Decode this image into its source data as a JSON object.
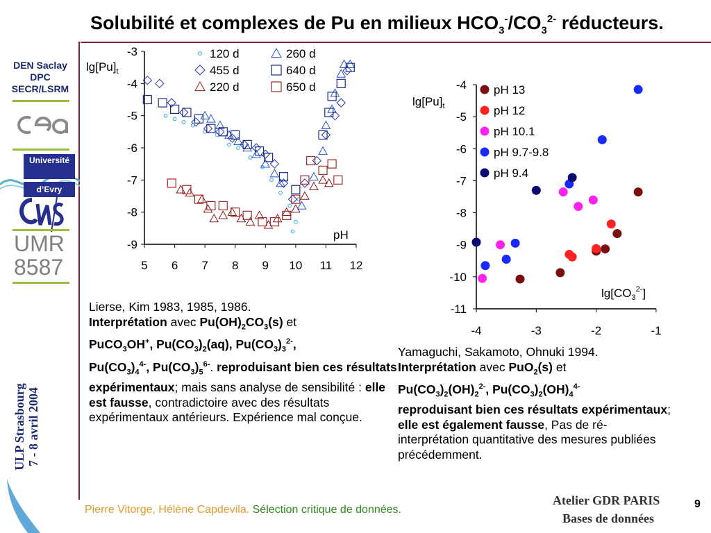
{
  "title": {
    "prefix": "Solubilité et complexes de Pu en milieux HCO",
    "sub1": "3",
    "sup1": "-",
    "mid": "/CO",
    "sub2": "3",
    "sup2": "2-",
    "suffix": " réducteurs."
  },
  "sidebar": {
    "org_line1": "DEN Saclay",
    "org_line2": "DPC",
    "org_line3": "SECR/LSRM",
    "univ_line1": "Université",
    "univ_line2": "d’Evry",
    "umr_line1": "UMR",
    "umr_line2": "8587",
    "venue_line1": "ULP Strasbourg",
    "venue_line2": "7 - 8 avril 2004"
  },
  "chart_left": {
    "ylabel": "lg[Pu]",
    "ylabel_sub": "t",
    "xlabel": "pH",
    "legend": [
      "120 d",
      "260 d",
      "455 d",
      "640 d",
      "220 d",
      "650 d"
    ]
  },
  "chart_right": {
    "ylabel": "lg[Pu]",
    "ylabel_sub": "t",
    "xlabel": "lg[CO",
    "xlabel_sub": "3",
    "xlabel_sup": "2-",
    "xlabel_end": "]"
  },
  "chart_data": [
    {
      "type": "scatter",
      "xlabel": "pH",
      "ylabel": "lg[Pu]t",
      "xlim": [
        5,
        12
      ],
      "ylim": [
        -9,
        -3
      ],
      "x_ticks": [
        "5",
        "6",
        "7",
        "8",
        "9",
        "10",
        "11",
        "12"
      ],
      "y_ticks": [
        "-3",
        "-4",
        "-5",
        "-6",
        "-7",
        "-8",
        "-9"
      ],
      "series": [
        {
          "name": "120 d",
          "marker": "circle",
          "color": "#33aadd",
          "points": [
            [
              5.7,
              -5.0
            ],
            [
              6.0,
              -5.1
            ],
            [
              6.3,
              -5.2
            ],
            [
              6.6,
              -5.3
            ],
            [
              7.0,
              -5.5
            ],
            [
              7.4,
              -5.6
            ],
            [
              7.8,
              -5.9
            ],
            [
              8.1,
              -6.0
            ],
            [
              8.5,
              -6.3
            ],
            [
              8.9,
              -6.6
            ],
            [
              9.2,
              -7.0
            ],
            [
              9.5,
              -7.4
            ],
            [
              9.8,
              -7.8
            ],
            [
              10.0,
              -8.3
            ],
            [
              9.9,
              -8.6
            ],
            [
              10.1,
              -7.6
            ]
          ]
        },
        {
          "name": "260 d",
          "marker": "triangle",
          "color": "#2255cc",
          "points": [
            [
              7.0,
              -5.0
            ],
            [
              7.2,
              -5.1
            ],
            [
              7.5,
              -5.3
            ],
            [
              7.8,
              -5.6
            ],
            [
              8.1,
              -5.8
            ],
            [
              8.4,
              -6.0
            ],
            [
              8.7,
              -6.2
            ],
            [
              9.0,
              -6.5
            ],
            [
              9.3,
              -6.8
            ],
            [
              9.5,
              -7.1
            ],
            [
              10.2,
              -7.8
            ],
            [
              10.6,
              -6.9
            ],
            [
              10.9,
              -6.1
            ],
            [
              11.0,
              -5.3
            ],
            [
              11.2,
              -4.8
            ],
            [
              11.3,
              -4.3
            ],
            [
              11.5,
              -3.7
            ],
            [
              11.6,
              -3.4
            ],
            [
              11.8,
              -3.4
            ]
          ]
        },
        {
          "name": "455 d",
          "marker": "diamond",
          "color": "#2233aa",
          "points": [
            [
              5.1,
              -3.9
            ],
            [
              5.5,
              -4.0
            ],
            [
              5.9,
              -4.6
            ],
            [
              6.3,
              -4.9
            ],
            [
              6.7,
              -5.2
            ],
            [
              7.1,
              -5.4
            ],
            [
              7.5,
              -5.5
            ],
            [
              7.9,
              -5.7
            ],
            [
              8.3,
              -5.9
            ],
            [
              8.7,
              -6.0
            ],
            [
              9.0,
              -6.2
            ],
            [
              9.3,
              -6.5
            ],
            [
              9.6,
              -7.1
            ],
            [
              9.9,
              -7.6
            ],
            [
              10.3,
              -7.1
            ],
            [
              10.7,
              -6.4
            ],
            [
              11.0,
              -5.6
            ],
            [
              11.3,
              -5.0
            ],
            [
              11.5,
              -4.6
            ],
            [
              11.7,
              -3.6
            ]
          ]
        },
        {
          "name": "640 d",
          "marker": "square",
          "color": "#1a2a8a",
          "points": [
            [
              5.1,
              -4.5
            ],
            [
              5.6,
              -4.6
            ],
            [
              6.0,
              -4.8
            ],
            [
              6.4,
              -4.9
            ],
            [
              6.8,
              -5.1
            ],
            [
              7.2,
              -5.4
            ],
            [
              7.6,
              -5.5
            ],
            [
              8.0,
              -5.6
            ],
            [
              8.4,
              -5.9
            ],
            [
              8.8,
              -6.1
            ],
            [
              9.1,
              -6.3
            ],
            [
              9.6,
              -6.9
            ],
            [
              10.0,
              -7.3
            ],
            [
              10.9,
              -5.6
            ],
            [
              11.1,
              -4.9
            ],
            [
              11.2,
              -4.4
            ],
            [
              11.5,
              -4.0
            ],
            [
              11.8,
              -3.5
            ]
          ]
        },
        {
          "name": "220 d",
          "marker": "triangle",
          "color": "#8b1a1a",
          "points": [
            [
              6.2,
              -7.3
            ],
            [
              6.5,
              -7.4
            ],
            [
              6.9,
              -7.6
            ],
            [
              7.1,
              -7.9
            ],
            [
              7.3,
              -8.2
            ],
            [
              7.6,
              -8.1
            ],
            [
              7.9,
              -8.0
            ],
            [
              8.2,
              -8.2
            ],
            [
              8.5,
              -8.3
            ],
            [
              8.8,
              -8.1
            ],
            [
              9.1,
              -8.4
            ],
            [
              9.4,
              -8.2
            ],
            [
              9.7,
              -8.0
            ],
            [
              10.0,
              -7.9
            ],
            [
              10.3,
              -7.5
            ],
            [
              10.6,
              -7.2
            ],
            [
              10.9,
              -7.0
            ],
            [
              11.1,
              -7.1
            ]
          ]
        },
        {
          "name": "650 d",
          "marker": "square",
          "color": "#a52a2a",
          "points": [
            [
              5.9,
              -7.1
            ],
            [
              6.4,
              -7.3
            ],
            [
              6.8,
              -7.6
            ],
            [
              7.2,
              -7.8
            ],
            [
              7.6,
              -7.8
            ],
            [
              8.0,
              -8.0
            ],
            [
              8.4,
              -8.1
            ],
            [
              8.9,
              -8.3
            ],
            [
              9.3,
              -8.3
            ],
            [
              9.7,
              -8.1
            ],
            [
              10.0,
              -7.6
            ],
            [
              10.3,
              -7.0
            ],
            [
              10.5,
              -6.4
            ],
            [
              10.9,
              -6.7
            ],
            [
              11.2,
              -6.5
            ],
            [
              11.4,
              -7.0
            ]
          ]
        }
      ]
    },
    {
      "type": "scatter",
      "xlabel": "lg[CO3 2-]",
      "ylabel": "lg[Pu]t",
      "xlim": [
        -4,
        -1
      ],
      "ylim": [
        -11,
        -4
      ],
      "x_ticks": [
        "-4",
        "-3",
        "-2",
        "-1"
      ],
      "y_ticks": [
        "-4",
        "-5",
        "-6",
        "-7",
        "-8",
        "-9",
        "-10",
        "-11"
      ],
      "legend_position": "top-left",
      "series": [
        {
          "name": "pH 13",
          "color": "#7a0f0f",
          "points": [
            [
              -3.27,
              -10.07
            ],
            [
              -2.6,
              -9.87
            ],
            [
              -2.0,
              -9.2
            ],
            [
              -1.85,
              -9.13
            ],
            [
              -1.65,
              -8.65
            ],
            [
              -1.3,
              -7.35
            ]
          ]
        },
        {
          "name": "pH 12",
          "color": "#ff2222",
          "points": [
            [
              -2.45,
              -9.3
            ],
            [
              -2.4,
              -9.38
            ],
            [
              -2.0,
              -9.12
            ],
            [
              -1.75,
              -8.35
            ]
          ]
        },
        {
          "name": "pH 10.1",
          "color": "#ff22ee",
          "points": [
            [
              -3.9,
              -10.05
            ],
            [
              -3.6,
              -9.0
            ],
            [
              -2.55,
              -7.35
            ],
            [
              -2.3,
              -7.8
            ],
            [
              -2.05,
              -7.6
            ]
          ]
        },
        {
          "name": "pH 9.7-9.8",
          "color": "#1a2aff",
          "points": [
            [
              -3.85,
              -9.65
            ],
            [
              -3.5,
              -9.45
            ],
            [
              -3.35,
              -8.95
            ],
            [
              -2.45,
              -7.1
            ],
            [
              -1.9,
              -5.72
            ],
            [
              -1.3,
              -4.15
            ]
          ]
        },
        {
          "name": "pH 9.4",
          "color": "#0a0a70",
          "points": [
            [
              -4.0,
              -8.92
            ],
            [
              -3.0,
              -7.3
            ],
            [
              -2.4,
              -6.9
            ]
          ]
        }
      ]
    }
  ],
  "left_text": {
    "p1": "Lierse, Kim 1983, 1985, 1986.",
    "interp": "Interprétation",
    "avec": " avec ",
    "sp1a": "Pu(OH)",
    "sp1b": "2",
    "sp1c": "CO",
    "sp1d": "3",
    "sp1e": "(s)",
    "et": " et",
    "sp2": "PuCO",
    "sp2b": "3",
    "sp2c": "OH",
    "sp2d": "+",
    "sp2e": ", Pu(CO",
    "sp2f": "3",
    "sp2g": ")",
    "sp2h": "2",
    "sp2i": "(aq), ",
    "sp3": "Pu(CO",
    "sp3b": "3",
    "sp3c": ")",
    "sp3d": "3",
    "sp3e": "2-",
    "sp3f": ",",
    "sp4": "Pu(CO",
    "sp4b": "3",
    "sp4c": ")",
    "sp4d": "4",
    "sp4e": "4-",
    "sp4f": ",  Pu(CO",
    "sp4g": "3",
    "sp4h": ")",
    "sp4i": "5",
    "sp4j": "6-",
    "dot": ". ",
    "repro": "reproduisant bien ces résultats expérimentaux",
    "rest1": "; mais sans analyse de sensibilité : ",
    "fausse": "elle est fausse",
    "rest2": ", contradictoire avec des résultats expérimentaux antérieurs. Expérience mal conçue."
  },
  "right_text": {
    "p1": "Yamaguchi, Sakamoto, Ohnuki 1994.",
    "interp": "Interprétation",
    "avec": " avec ",
    "s1": "PuO",
    "s1b": "2",
    "s1c": "(s)",
    "et": " et",
    "s2": "Pu(CO",
    "s2b": "3",
    "s2c": ")",
    "s2d": "2",
    "s2e": "(OH)",
    "s2f": "2",
    "s2g": "2-",
    "s2h": ", Pu(CO",
    "s2i": "3",
    "s2j": ")",
    "s2k": "2",
    "s2l": "(OH)",
    "s2m": "4",
    "s2n": "4-",
    "repro": "reproduisant bien ces résultats expérimentaux",
    "semi": "; ",
    "fausse": "elle est également fausse",
    "rest": ", Pas de ré-interprétation quantitative des mesures publiées précédemment."
  },
  "footer": {
    "authors": "Pierre Vitorge, Hélène Capdevila. ",
    "topic": "Sélection critique de données.",
    "gdr_line1": "Atelier GDR PARIS",
    "gdr_line2": "Bases de données",
    "page": "9"
  },
  "colors": {
    "accent": "#7b2040",
    "navy": "#1b2a6e",
    "green": "#9bbd3d"
  }
}
